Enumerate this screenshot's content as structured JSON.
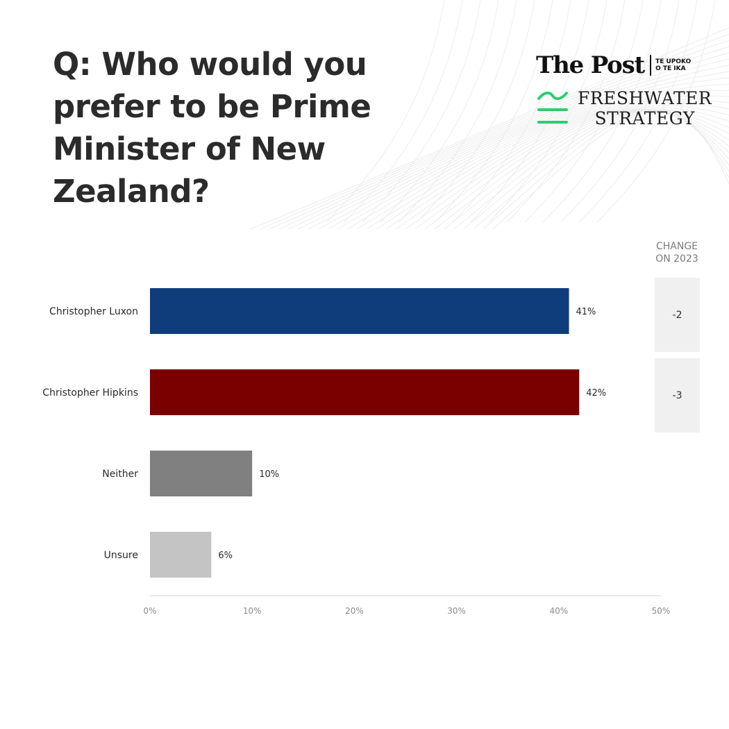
{
  "header": {
    "question_lines": [
      "Q: Who would you",
      "prefer to be Prime",
      "Minister of New",
      "Zealand?"
    ]
  },
  "logos": {
    "post_name": "The Post",
    "post_sub_line1": "TE UPOKO",
    "post_sub_line2": "O TE IKA",
    "freshwater_line1": "FRESHWATER",
    "freshwater_line2": "STRATEGY"
  },
  "change": {
    "header_line1": "CHANGE",
    "header_line2": "ON 2023",
    "values": [
      "-2",
      "-3"
    ]
  },
  "colors": {
    "luxon": "#0f3d7c",
    "hipkins": "#7a0000",
    "neither": "#808080",
    "unsure": "#c4c4c4",
    "freshwater_green": "#2ecc71"
  },
  "chart_data": {
    "type": "bar",
    "orientation": "horizontal",
    "categories": [
      "Christopher Luxon",
      "Christopher Hipkins",
      "Neither",
      "Unsure"
    ],
    "values": [
      41,
      42,
      10,
      6
    ],
    "value_labels": [
      "41%",
      "42%",
      "10%",
      "6%"
    ],
    "xlim": [
      0,
      50
    ],
    "x_ticks": [
      0,
      10,
      20,
      30,
      40,
      50
    ],
    "x_tick_labels": [
      "0%",
      "10%",
      "20%",
      "30%",
      "40%",
      "50%"
    ],
    "grid": false,
    "title": "Q: Who would you prefer to be Prime Minister of New Zealand?"
  }
}
